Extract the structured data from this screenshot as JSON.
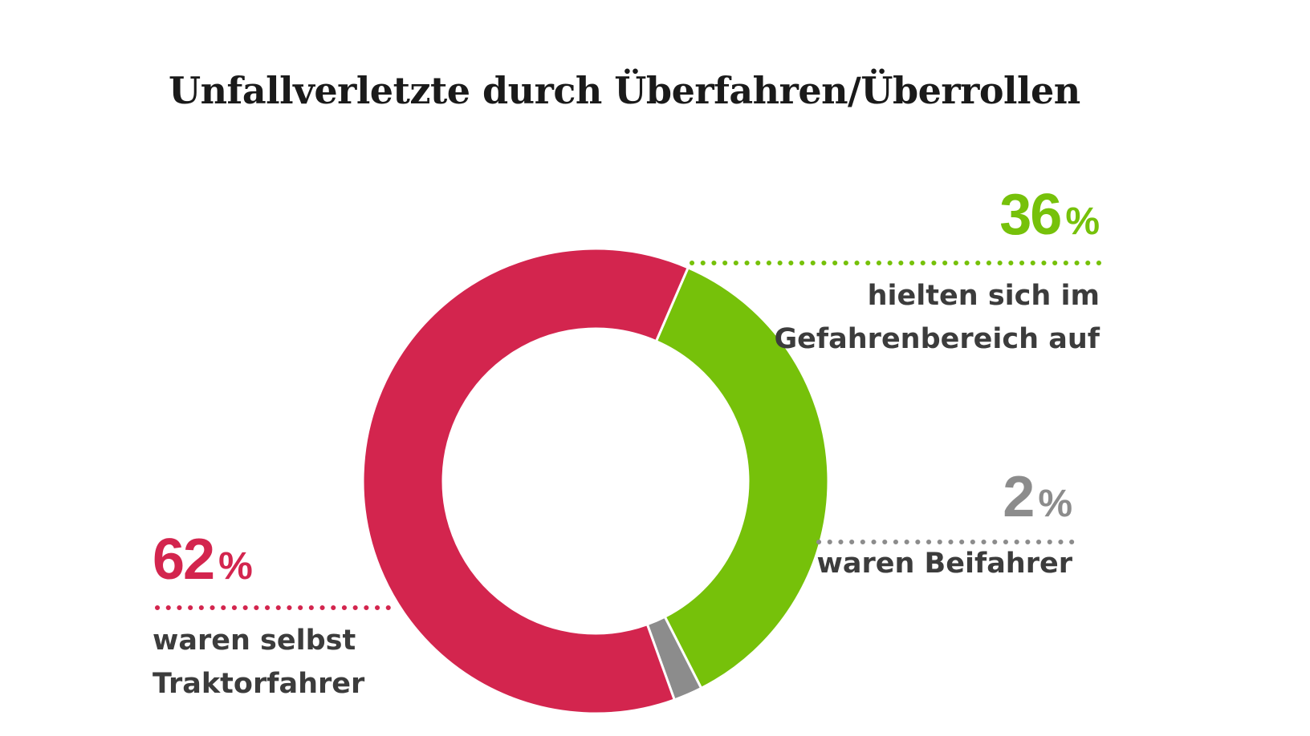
{
  "chart_data": {
    "type": "pie",
    "title": "Unfallverletzte durch Überfahren/Überrollen",
    "unit": "%",
    "slices": [
      {
        "name": "hielten sich im Gefahrenbereich auf",
        "value": 36,
        "label_value": "36",
        "color": "#76c10a",
        "desc_lines": [
          "hielten sich im",
          "Gefahrenbereich auf"
        ]
      },
      {
        "name": "waren Beifahrer",
        "value": 2,
        "label_value": "2",
        "color": "#8c8c8c",
        "desc_lines": [
          "waren Beifahrer"
        ]
      },
      {
        "name": "waren selbst Traktorfahrer",
        "value": 62,
        "label_value": "62",
        "color": "#d3254e",
        "desc_lines": [
          "waren selbst",
          "Traktorfahrer"
        ]
      }
    ]
  }
}
